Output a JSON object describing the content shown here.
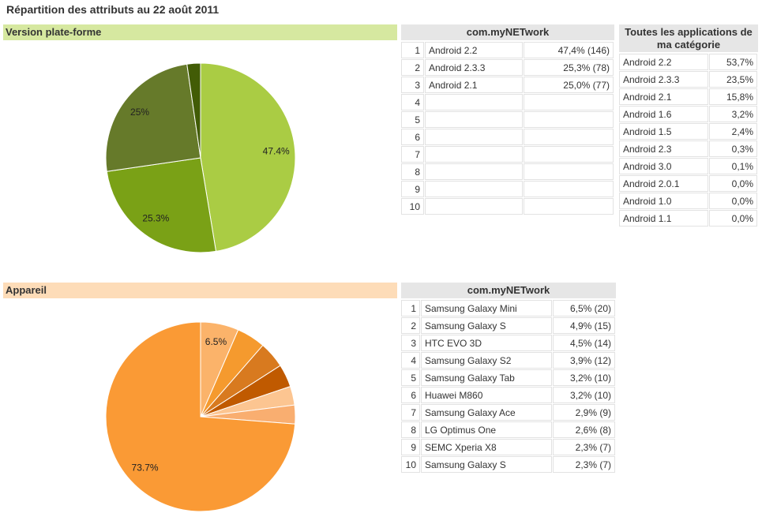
{
  "title": "Répartition des attributs au 22 août 2011",
  "sections": [
    "Version plate-forme",
    "Appareil"
  ],
  "chart_data": [
    {
      "type": "pie",
      "values": [
        47.4,
        25.3,
        25,
        2.3
      ],
      "value_labels": [
        "47.4%",
        "25.3%",
        "25%",
        null
      ],
      "colors": [
        "#aacc44",
        "#7aa116",
        "#667a2a",
        "#425c06"
      ]
    },
    {
      "type": "pie",
      "values": [
        6.5,
        4.9,
        4.5,
        3.9,
        3.2,
        3.2,
        73.7
      ],
      "value_labels": [
        "6.5%",
        null,
        null,
        null,
        null,
        null,
        "73.7%"
      ],
      "colors": [
        "#fbb36a",
        "#f59a2e",
        "#d87a1f",
        "#c05a00",
        "#fcc591",
        "#f9ae70",
        "#fa9a35"
      ]
    }
  ],
  "tables": [
    {
      "header": "com.myNETwork",
      "rows": [
        [
          "1",
          "Android 2.2",
          "47,4% (146)"
        ],
        [
          "2",
          "Android 2.3.3",
          "25,3% (78)"
        ],
        [
          "3",
          "Android 2.1",
          "25,0% (77)"
        ],
        [
          "4"
        ],
        [
          "5"
        ],
        [
          "6"
        ],
        [
          "7"
        ],
        [
          "8"
        ],
        [
          "9"
        ],
        [
          "10"
        ]
      ]
    },
    {
      "header": "Toutes les applications de ma catégorie",
      "rows": [
        [
          "Android 2.2",
          "53,7%"
        ],
        [
          "Android 2.3.3",
          "23,5%"
        ],
        [
          "Android 2.1",
          "15,8%"
        ],
        [
          "Android 1.6",
          "3,2%"
        ],
        [
          "Android 1.5",
          "2,4%"
        ],
        [
          "Android 2.3",
          "0,3%"
        ],
        [
          "Android 3.0",
          "0,1%"
        ],
        [
          "Android 2.0.1",
          "0,0%"
        ],
        [
          "Android 1.0",
          "0,0%"
        ],
        [
          "Android 1.1",
          "0,0%"
        ]
      ]
    },
    {
      "header": "com.myNETwork",
      "rows": [
        [
          "1",
          "Samsung Galaxy Mini",
          "6,5% (20)"
        ],
        [
          "2",
          "Samsung Galaxy S",
          "4,9% (15)"
        ],
        [
          "3",
          "HTC EVO 3D",
          "4,5% (14)"
        ],
        [
          "4",
          "Samsung Galaxy S2",
          "3,9% (12)"
        ],
        [
          "5",
          "Samsung Galaxy Tab",
          "3,2% (10)"
        ],
        [
          "6",
          "Huawei M860",
          "3,2% (10)"
        ],
        [
          "7",
          "Samsung Galaxy Ace",
          "2,9% (9)"
        ],
        [
          "8",
          "LG Optimus One",
          "2,6% (8)"
        ],
        [
          "9",
          "SEMC Xperia X8",
          "2,3% (7)"
        ],
        [
          "10",
          "Samsung Galaxy S",
          "2,3% (7)"
        ]
      ]
    }
  ]
}
